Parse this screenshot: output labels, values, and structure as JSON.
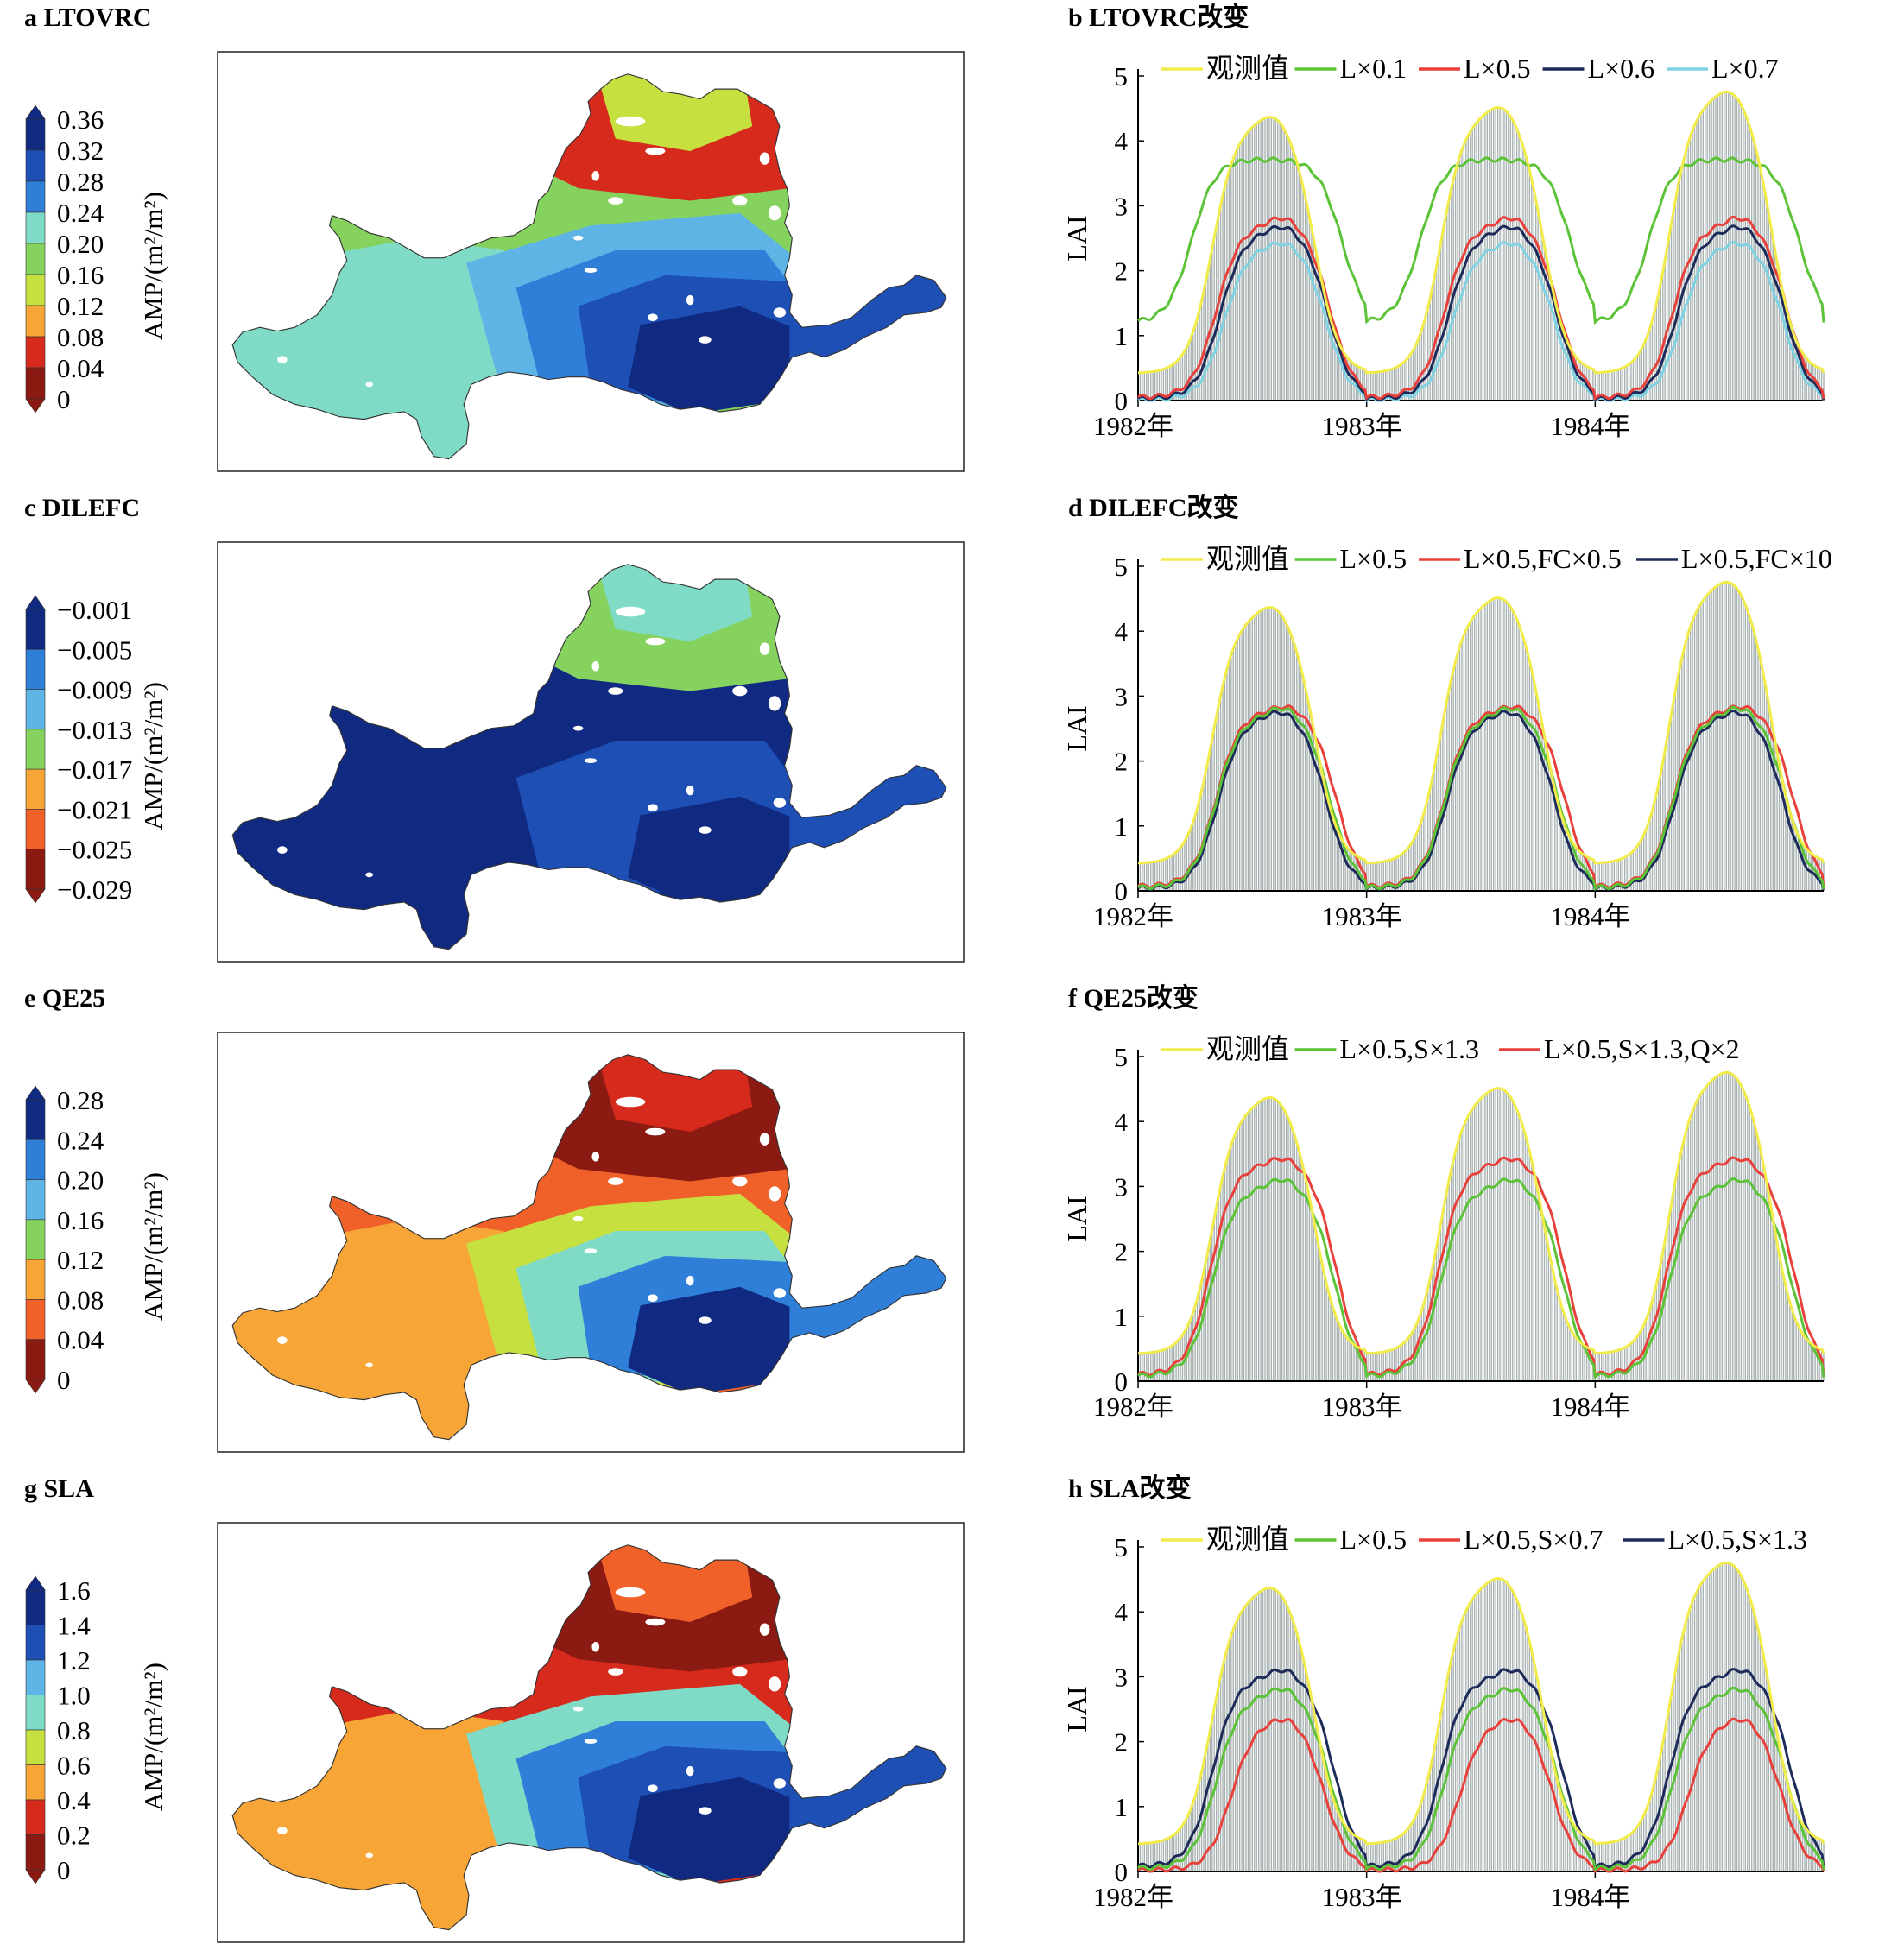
{
  "map_panels": [
    {
      "title": "a LTOVRC",
      "cbar_label": "AMP/(m²/m²)",
      "ticks": [
        "0.36",
        "0.32",
        "0.28",
        "0.24",
        "0.20",
        "0.16",
        "0.12",
        "0.08",
        "0.04",
        "0"
      ],
      "scheme": "blue_high"
    },
    {
      "title": "c DILEFC",
      "cbar_label": "AMP/(m²/m²)",
      "ticks": [
        "−0.001",
        "−0.005",
        "−0.009",
        "−0.013",
        "−0.017",
        "−0.021",
        "−0.025",
        "−0.029"
      ],
      "scheme": "dark"
    },
    {
      "title": "e QE25",
      "cbar_label": "AMP/(m²/m²)",
      "ticks": [
        "0.28",
        "0.24",
        "0.20",
        "0.16",
        "0.12",
        "0.08",
        "0.04",
        "0"
      ],
      "scheme": "red_north"
    },
    {
      "title": "g SLA",
      "cbar_label": "AMP/(m²/m²)",
      "ticks": [
        "1.6",
        "1.4",
        "1.2",
        "1.0",
        "0.8",
        "0.6",
        "0.4",
        "0.2",
        "0"
      ],
      "scheme": "mixed"
    }
  ],
  "colors": {
    "observed": "#f2ec4a",
    "green": "#5cc338",
    "red": "#e8413c",
    "navy": "#1c2b5a",
    "cyan": "#7fd3e3",
    "bars": "#a9b2b2",
    "cbar": [
      "#8a1a12",
      "#d52a1c",
      "#f0612a",
      "#f7a536",
      "#c6e040",
      "#86d25f",
      "#7fdbc6",
      "#5fb4e6",
      "#2f7fd8",
      "#1d4fb5",
      "#102a82"
    ]
  },
  "chart_data": [
    {
      "type": "line",
      "title": "b LTOVRC改变",
      "ylabel": "LAI",
      "ylim": [
        0,
        5
      ],
      "yticks": [
        0,
        1,
        2,
        3,
        4,
        5
      ],
      "xticks": [
        "1982年",
        "1983年",
        "1984年"
      ],
      "xrange": [
        0,
        36
      ],
      "series": [
        {
          "name": "观测值",
          "color": "observed",
          "shape": "obs"
        },
        {
          "name": "L×0.1",
          "color": "green",
          "shape": "l01"
        },
        {
          "name": "L×0.5",
          "color": "red",
          "shape": "l05"
        },
        {
          "name": "L×0.6",
          "color": "navy",
          "shape": "l06"
        },
        {
          "name": "L×0.7",
          "color": "cyan",
          "shape": "l07"
        }
      ]
    },
    {
      "type": "line",
      "title": "d DILEFC改变",
      "ylabel": "LAI",
      "ylim": [
        0,
        5
      ],
      "yticks": [
        0,
        1,
        2,
        3,
        4,
        5
      ],
      "xticks": [
        "1982年",
        "1983年",
        "1984年"
      ],
      "xrange": [
        0,
        36
      ],
      "series": [
        {
          "name": "观测值",
          "color": "observed",
          "shape": "obs"
        },
        {
          "name": "L×0.5",
          "color": "green",
          "shape": "l05"
        },
        {
          "name": "L×0.5,FC×0.5",
          "color": "red",
          "shape": "fc05"
        },
        {
          "name": "L×0.5,FC×10",
          "color": "navy",
          "shape": "fc10"
        }
      ]
    },
    {
      "type": "line",
      "title": "f QE25改变",
      "ylabel": "LAI",
      "ylim": [
        0,
        5
      ],
      "yticks": [
        0,
        1,
        2,
        3,
        4,
        5
      ],
      "xticks": [
        "1982年",
        "1983年",
        "1984年"
      ],
      "xrange": [
        0,
        36
      ],
      "series": [
        {
          "name": "观测值",
          "color": "observed",
          "shape": "obs"
        },
        {
          "name": "L×0.5,S×1.3",
          "color": "green",
          "shape": "s13"
        },
        {
          "name": "L×0.5,S×1.3,Q×2",
          "color": "red",
          "shape": "q2"
        }
      ]
    },
    {
      "type": "line",
      "title": "h SLA改变",
      "ylabel": "LAI",
      "ylim": [
        0,
        5
      ],
      "yticks": [
        0,
        1,
        2,
        3,
        4,
        5
      ],
      "xticks": [
        "1982年",
        "1983年",
        "1984年"
      ],
      "xrange": [
        0,
        36
      ],
      "series": [
        {
          "name": "观测值",
          "color": "observed",
          "shape": "obs"
        },
        {
          "name": "L×0.5",
          "color": "green",
          "shape": "l05"
        },
        {
          "name": "L×0.5,S×0.7",
          "color": "red",
          "shape": "s07"
        },
        {
          "name": "L×0.5,S×1.3",
          "color": "navy",
          "shape": "s13"
        }
      ]
    }
  ]
}
